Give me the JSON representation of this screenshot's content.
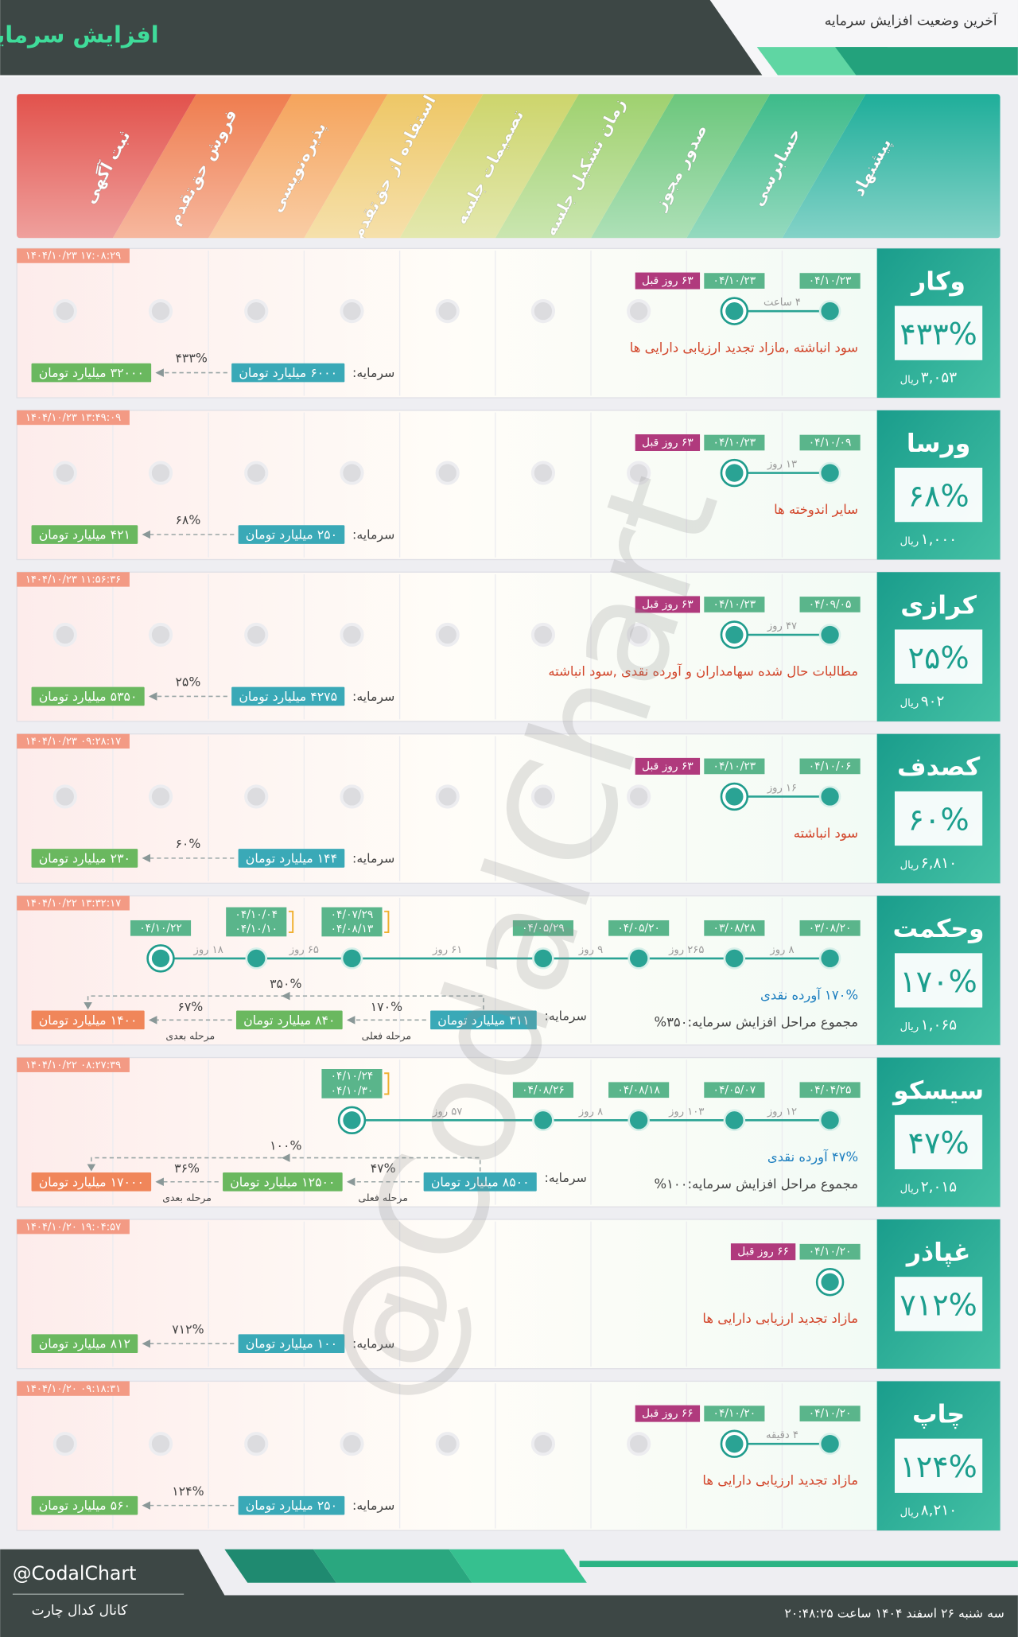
{
  "header": {
    "title": "افزایش سرمایه",
    "subtitle": "آخرین وضعیت افزایش سرمایه"
  },
  "stages": [
    {
      "label": "پیشنهاد",
      "color": "#1fae9a"
    },
    {
      "label": "حسابرسی",
      "color": "#3dbb8a"
    },
    {
      "label": "صدور مجوز",
      "color": "#6cc77c"
    },
    {
      "label": "زمان تشکیل جلسه",
      "color": "#9fd16f"
    },
    {
      "label": "تصمیمات جلسه",
      "color": "#cdd56c"
    },
    {
      "label": "استفاده از حق‌تقدم",
      "color": "#eec766"
    },
    {
      "label": "پذیره‌نویسی",
      "color": "#f5a45c"
    },
    {
      "label": "فروش حق‌تقدم",
      "color": "#ef7d4f"
    },
    {
      "label": "ثبت آگهی",
      "color": "#e2524c"
    }
  ],
  "rows": [
    {
      "symbol": "وکار",
      "percent": "۴۳۳%",
      "price": "۳,۰۵۳",
      "unit": "ریال",
      "timestamp": "۱۴۰۴/۱۰/۲۳ ۱۷:۰۸:۲۹",
      "steps": [
        {
          "dates": [
            "۰۴/۱۰/۲۳"
          ]
        },
        {
          "dates": [
            "۰۴/۱۰/۲۳"
          ],
          "gap": "۴ ساعت",
          "ago": "۶۳ روز قبل",
          "current": true
        },
        null,
        null,
        null,
        null,
        null,
        null,
        null
      ],
      "description": [
        "سود انباشته ,مازاد تجدید ارزیابی دارایی ها"
      ],
      "capital": {
        "label": "سرمایه:",
        "amounts": [
          "۶۰۰۰ میلیارد تومان",
          "۳۲۰۰۰ میلیارد تومان"
        ],
        "changes": [
          "۴۳۳%"
        ]
      }
    },
    {
      "symbol": "ورسا",
      "percent": "۶۸%",
      "price": "۱,۰۰۰",
      "unit": "ریال",
      "timestamp": "۱۴۰۴/۱۰/۲۳ ۱۳:۴۹:۰۹",
      "steps": [
        {
          "dates": [
            "۰۴/۱۰/۰۹"
          ]
        },
        {
          "dates": [
            "۰۴/۱۰/۲۳"
          ],
          "gap": "۱۳ روز",
          "ago": "۶۳ روز قبل",
          "current": true
        },
        null,
        null,
        null,
        null,
        null,
        null,
        null
      ],
      "description": [
        "سایر اندوخته ها"
      ],
      "capital": {
        "label": "سرمایه:",
        "amounts": [
          "۲۵۰ میلیارد تومان",
          "۴۲۱ میلیارد تومان"
        ],
        "changes": [
          "۶۸%"
        ]
      }
    },
    {
      "symbol": "کرازی",
      "percent": "۲۵%",
      "price": "۹۰۲",
      "unit": "ریال",
      "timestamp": "۱۴۰۴/۱۰/۲۳ ۱۱:۵۶:۳۶",
      "steps": [
        {
          "dates": [
            "۰۴/۰۹/۰۵"
          ]
        },
        {
          "dates": [
            "۰۴/۱۰/۲۳"
          ],
          "gap": "۴۷ روز",
          "ago": "۶۳ روز قبل",
          "current": true
        },
        null,
        null,
        null,
        null,
        null,
        null,
        null
      ],
      "description": [
        "مطالبات حال شده سهامداران و آورده نقدی ,سود انباشته"
      ],
      "capital": {
        "label": "سرمایه:",
        "amounts": [
          "۴۲۷۵ میلیارد تومان",
          "۵۳۵۰ میلیارد تومان"
        ],
        "changes": [
          "۲۵%"
        ]
      }
    },
    {
      "symbol": "کصدف",
      "percent": "۶۰%",
      "price": "۶,۸۱۰",
      "unit": "ریال",
      "timestamp": "۱۴۰۴/۱۰/۲۳ ۰۹:۲۸:۱۷",
      "steps": [
        {
          "dates": [
            "۰۴/۱۰/۰۶"
          ]
        },
        {
          "dates": [
            "۰۴/۱۰/۲۳"
          ],
          "gap": "۱۶ روز",
          "ago": "۶۳ روز قبل",
          "current": true
        },
        null,
        null,
        null,
        null,
        null,
        null,
        null
      ],
      "description": [
        "سود انباشته"
      ],
      "capital": {
        "label": "سرمایه:",
        "amounts": [
          "۱۴۴ میلیارد تومان",
          "۲۳۰ میلیارد تومان"
        ],
        "changes": [
          "۶۰%"
        ]
      }
    },
    {
      "symbol": "وحکمت",
      "percent": "۱۷۰%",
      "price": "۱,۰۶۵",
      "unit": "ریال",
      "timestamp": "۱۴۰۴/۱۰/۲۲ ۱۳:۳۲:۱۷",
      "steps": [
        {
          "dates": [
            "۰۳/۰۸/۲۰"
          ]
        },
        {
          "dates": [
            "۰۳/۰۸/۲۸"
          ],
          "gap": "۸ روز"
        },
        {
          "dates": [
            "۰۴/۰۵/۲۰"
          ],
          "gap": "۲۶۵ روز"
        },
        {
          "dates": [
            "۰۴/۰۵/۲۹"
          ],
          "gap": "۹ روز"
        },
        null,
        {
          "dates": [
            "۰۴/۰۷/۲۹",
            "۰۴/۰۸/۱۳"
          ],
          "gap": "۶۱ روز"
        },
        {
          "dates": [
            "۰۴/۱۰/۰۴",
            "۰۴/۱۰/۱۰"
          ],
          "gap": "۶۵ روز"
        },
        {
          "dates": [
            "۰۴/۱۰/۲۲"
          ],
          "gap": "۱۸ روز",
          "current": true
        },
        null
      ],
      "description": [
        "۱۷۰% آورده نقدی",
        "مجموع مراحل افزایش سرمایه:۳۵۰%"
      ],
      "capital": {
        "label": "سرمایه:",
        "amounts": [
          "۳۱۱ میلیارد تومان",
          "۸۴۰ میلیارد تومان",
          "۱۴۰۰ میلیارد تومان"
        ],
        "changes": [
          "۱۷۰%",
          "۶۷%"
        ],
        "phases": [
          "مرحله فعلی",
          "مرحله بعدی"
        ],
        "total": "۳۵۰%"
      }
    },
    {
      "symbol": "سیسکو",
      "percent": "۴۷%",
      "price": "۲,۰۱۵",
      "unit": "ریال",
      "timestamp": "۱۴۰۴/۱۰/۲۲ ۰۸:۲۷:۳۹",
      "steps": [
        {
          "dates": [
            "۰۴/۰۴/۲۵"
          ]
        },
        {
          "dates": [
            "۰۴/۰۵/۰۷"
          ],
          "gap": "۱۲ روز"
        },
        {
          "dates": [
            "۰۴/۰۸/۱۸"
          ],
          "gap": "۱۰۳ روز"
        },
        {
          "dates": [
            "۰۴/۰۸/۲۶"
          ],
          "gap": "۸ روز"
        },
        null,
        {
          "dates": [
            "۰۴/۱۰/۲۴",
            "۰۴/۱۰/۳۰"
          ],
          "gap": "۵۷ روز",
          "current": true
        },
        null,
        null,
        null
      ],
      "description": [
        "۴۷% آورده نقدی",
        "مجموع مراحل افزایش سرمایه:۱۰۰%"
      ],
      "capital": {
        "label": "سرمایه:",
        "amounts": [
          "۸۵۰۰ میلیارد تومان",
          "۱۲۵۰۰ میلیارد تومان",
          "۱۷۰۰۰ میلیارد تومان"
        ],
        "changes": [
          "۴۷%",
          "۳۶%"
        ],
        "phases": [
          "مرحله فعلی",
          "مرحله بعدی"
        ],
        "total": "۱۰۰%"
      }
    },
    {
      "symbol": "غپاذر",
      "percent": "۷۱۲%",
      "timestamp": "۱۴۰۴/۱۰/۲۰ ۱۹:۰۴:۵۷",
      "steps": [
        {
          "dates": [
            "۰۴/۱۰/۲۰"
          ],
          "ago": "۶۶ روز قبل",
          "current": true
        },
        null,
        null,
        null,
        null,
        null,
        null,
        null,
        null
      ],
      "description": [
        "مازاد تجدید ارزیابی دارایی ها"
      ],
      "capital": {
        "label": "سرمایه:",
        "amounts": [
          "۱۰۰ میلیارد تومان",
          "۸۱۲ میلیارد تومان"
        ],
        "changes": [
          "۷۱۲%"
        ]
      }
    },
    {
      "symbol": "چاپ",
      "percent": "۱۲۴%",
      "price": "۸,۲۱۰",
      "unit": "ریال",
      "timestamp": "۱۴۰۴/۱۰/۲۰ ۰۹:۱۸:۳۱",
      "steps": [
        {
          "dates": [
            "۰۴/۱۰/۲۰"
          ]
        },
        {
          "dates": [
            "۰۴/۱۰/۲۰"
          ],
          "gap": "۴ دقیقه",
          "ago": "۶۶ روز قبل",
          "current": true
        },
        null,
        null,
        null,
        null,
        null,
        null,
        null
      ],
      "description": [
        "مازاد تجدید ارزیابی دارایی ها"
      ],
      "capital": {
        "label": "سرمایه:",
        "amounts": [
          "۲۵۰ میلیارد تومان",
          "۵۶۰ میلیارد تومان"
        ],
        "changes": [
          "۱۲۴%"
        ]
      }
    }
  ],
  "watermark": "@CodalChart",
  "footer": {
    "handle": "@CodalChart",
    "channel": "کانال کدال چارت",
    "date": "سه شنبه ۲۶ اسفند ۱۴۰۴ ساعت ۲۰:۴۸:۲۵"
  }
}
